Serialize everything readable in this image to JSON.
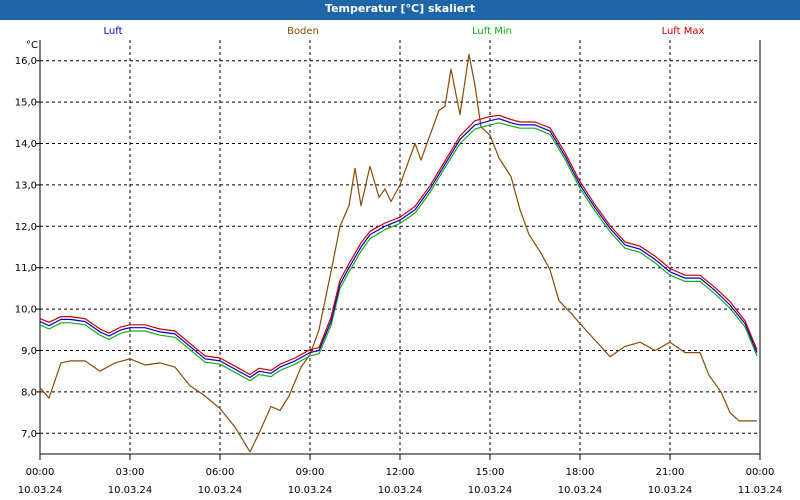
{
  "window_title": "Temperatur [°C] skaliert",
  "chart_data": {
    "type": "line",
    "title": "Temperatur [°C] skaliert",
    "ylabel": "°C",
    "xlabel": "",
    "xlim": [
      0,
      24
    ],
    "ylim": [
      6.5,
      16.5
    ],
    "y_ticks": [
      7.0,
      8.0,
      9.0,
      10.0,
      11.0,
      12.0,
      13.0,
      14.0,
      15.0,
      16.0
    ],
    "y_tick_labels": [
      "7,0",
      "8,0",
      "9,0",
      "10,0",
      "11,0",
      "12,0",
      "13,0",
      "14,0",
      "15,0",
      "16,0"
    ],
    "x_ticks": [
      {
        "x": 0,
        "time": "00:00",
        "date": "10.03.24"
      },
      {
        "x": 3,
        "time": "03:00",
        "date": "10.03.24"
      },
      {
        "x": 6,
        "time": "06:00",
        "date": "10.03.24"
      },
      {
        "x": 9,
        "time": "09:00",
        "date": "10.03.24"
      },
      {
        "x": 12,
        "time": "12:00",
        "date": "10.03.24"
      },
      {
        "x": 15,
        "time": "15:00",
        "date": "10.03.24"
      },
      {
        "x": 18,
        "time": "18:00",
        "date": "10.03.24"
      },
      {
        "x": 21,
        "time": "21:00",
        "date": "10.03.24"
      },
      {
        "x": 24,
        "time": "00:00",
        "date": "11.03.24"
      }
    ],
    "grid": true,
    "series": [
      {
        "name": "Luft",
        "color": "#0000cc",
        "x": [
          0,
          0.3,
          0.7,
          1.0,
          1.5,
          2.0,
          2.3,
          2.7,
          3.0,
          3.5,
          4.0,
          4.5,
          5.0,
          5.5,
          6.0,
          6.5,
          7.0,
          7.3,
          7.7,
          8.0,
          8.5,
          9.0,
          9.3,
          9.7,
          10.0,
          10.3,
          10.7,
          11.0,
          11.5,
          12.0,
          12.5,
          13.0,
          13.5,
          14.0,
          14.5,
          15.0,
          15.3,
          15.7,
          16.0,
          16.5,
          17.0,
          17.5,
          18.0,
          18.5,
          19.0,
          19.5,
          20.0,
          20.5,
          21.0,
          21.5,
          22.0,
          22.5,
          23.0,
          23.5,
          23.9
        ],
        "values": [
          9.7,
          9.6,
          9.75,
          9.75,
          9.7,
          9.45,
          9.35,
          9.5,
          9.55,
          9.55,
          9.45,
          9.4,
          9.1,
          8.8,
          8.75,
          8.55,
          8.35,
          8.5,
          8.45,
          8.6,
          8.75,
          8.95,
          9.0,
          9.7,
          10.6,
          11.0,
          11.5,
          11.8,
          12.0,
          12.15,
          12.4,
          12.9,
          13.5,
          14.1,
          14.45,
          14.55,
          14.6,
          14.5,
          14.45,
          14.45,
          14.3,
          13.7,
          13.0,
          12.45,
          11.95,
          11.55,
          11.45,
          11.2,
          10.9,
          10.75,
          10.75,
          10.45,
          10.1,
          9.65,
          8.95
        ]
      },
      {
        "name": "Boden",
        "color": "#8b4a0a",
        "x": [
          0,
          0.3,
          0.7,
          1.0,
          1.5,
          2.0,
          2.5,
          3.0,
          3.5,
          4.0,
          4.5,
          5.0,
          5.5,
          6.0,
          6.5,
          7.0,
          7.3,
          7.7,
          8.0,
          8.3,
          8.7,
          9.0,
          9.3,
          9.7,
          10.0,
          10.3,
          10.5,
          10.7,
          11.0,
          11.3,
          11.5,
          11.7,
          12.0,
          12.3,
          12.5,
          12.7,
          13.0,
          13.3,
          13.5,
          13.7,
          14.0,
          14.3,
          14.5,
          14.7,
          15.0,
          15.3,
          15.7,
          16.0,
          16.3,
          16.7,
          17.0,
          17.3,
          17.7,
          18.0,
          18.5,
          19.0,
          19.5,
          20.0,
          20.5,
          21.0,
          21.5,
          22.0,
          22.3,
          22.7,
          23.0,
          23.3,
          23.5,
          23.7,
          23.9
        ],
        "values": [
          8.1,
          7.85,
          8.7,
          8.75,
          8.75,
          8.5,
          8.7,
          8.8,
          8.65,
          8.7,
          8.6,
          8.15,
          7.9,
          7.6,
          7.15,
          6.55,
          7.0,
          7.65,
          7.55,
          7.9,
          8.6,
          8.9,
          9.5,
          10.9,
          12.0,
          12.5,
          13.4,
          12.5,
          13.45,
          12.7,
          12.9,
          12.6,
          13.0,
          13.6,
          14.0,
          13.6,
          14.2,
          14.8,
          14.9,
          15.8,
          14.7,
          16.15,
          15.4,
          14.4,
          14.2,
          13.65,
          13.2,
          12.4,
          11.8,
          11.35,
          10.95,
          10.2,
          9.9,
          9.65,
          9.25,
          8.85,
          9.1,
          9.2,
          9.0,
          9.2,
          8.95,
          8.95,
          8.4,
          8.0,
          7.5,
          7.3,
          7.3,
          7.3,
          7.3
        ]
      },
      {
        "name": "Luft Min",
        "color": "#1aaa1a",
        "x": [
          0,
          0.3,
          0.7,
          1.0,
          1.5,
          2.0,
          2.3,
          2.7,
          3.0,
          3.5,
          4.0,
          4.5,
          5.0,
          5.5,
          6.0,
          6.5,
          7.0,
          7.3,
          7.7,
          8.0,
          8.5,
          9.0,
          9.3,
          9.7,
          10.0,
          10.3,
          10.7,
          11.0,
          11.5,
          12.0,
          12.5,
          13.0,
          13.5,
          14.0,
          14.5,
          15.0,
          15.3,
          15.7,
          16.0,
          16.5,
          17.0,
          17.5,
          18.0,
          18.5,
          19.0,
          19.5,
          20.0,
          20.5,
          21.0,
          21.5,
          22.0,
          22.5,
          23.0,
          23.5,
          23.9
        ],
        "values": [
          9.62,
          9.52,
          9.67,
          9.67,
          9.62,
          9.37,
          9.27,
          9.42,
          9.47,
          9.47,
          9.37,
          9.32,
          9.02,
          8.72,
          8.67,
          8.47,
          8.27,
          8.42,
          8.37,
          8.52,
          8.67,
          8.87,
          8.92,
          9.6,
          10.5,
          10.9,
          11.4,
          11.7,
          11.92,
          12.07,
          12.32,
          12.82,
          13.42,
          14.0,
          14.35,
          14.45,
          14.5,
          14.42,
          14.37,
          14.37,
          14.22,
          13.62,
          12.92,
          12.37,
          11.87,
          11.47,
          11.37,
          11.12,
          10.82,
          10.67,
          10.67,
          10.37,
          10.02,
          9.57,
          8.87
        ]
      },
      {
        "name": "Luft Max",
        "color": "#cc0000",
        "x": [
          0,
          0.3,
          0.7,
          1.0,
          1.5,
          2.0,
          2.3,
          2.7,
          3.0,
          3.5,
          4.0,
          4.5,
          5.0,
          5.5,
          6.0,
          6.5,
          7.0,
          7.3,
          7.7,
          8.0,
          8.5,
          9.0,
          9.3,
          9.7,
          10.0,
          10.3,
          10.7,
          11.0,
          11.5,
          12.0,
          12.5,
          13.0,
          13.5,
          14.0,
          14.5,
          15.0,
          15.3,
          15.7,
          16.0,
          16.5,
          17.0,
          17.5,
          18.0,
          18.5,
          19.0,
          19.5,
          20.0,
          20.5,
          21.0,
          21.5,
          22.0,
          22.5,
          23.0,
          23.5,
          23.9
        ],
        "values": [
          9.77,
          9.68,
          9.82,
          9.82,
          9.77,
          9.52,
          9.42,
          9.57,
          9.62,
          9.62,
          9.52,
          9.47,
          9.17,
          8.87,
          8.82,
          8.62,
          8.42,
          8.57,
          8.52,
          8.67,
          8.82,
          9.02,
          9.07,
          9.8,
          10.7,
          11.1,
          11.6,
          11.88,
          12.08,
          12.22,
          12.48,
          12.98,
          13.58,
          14.18,
          14.55,
          14.65,
          14.68,
          14.58,
          14.52,
          14.52,
          14.38,
          13.78,
          13.08,
          12.52,
          12.02,
          11.62,
          11.52,
          11.28,
          10.98,
          10.82,
          10.82,
          10.52,
          10.18,
          9.72,
          9.02
        ]
      }
    ]
  }
}
